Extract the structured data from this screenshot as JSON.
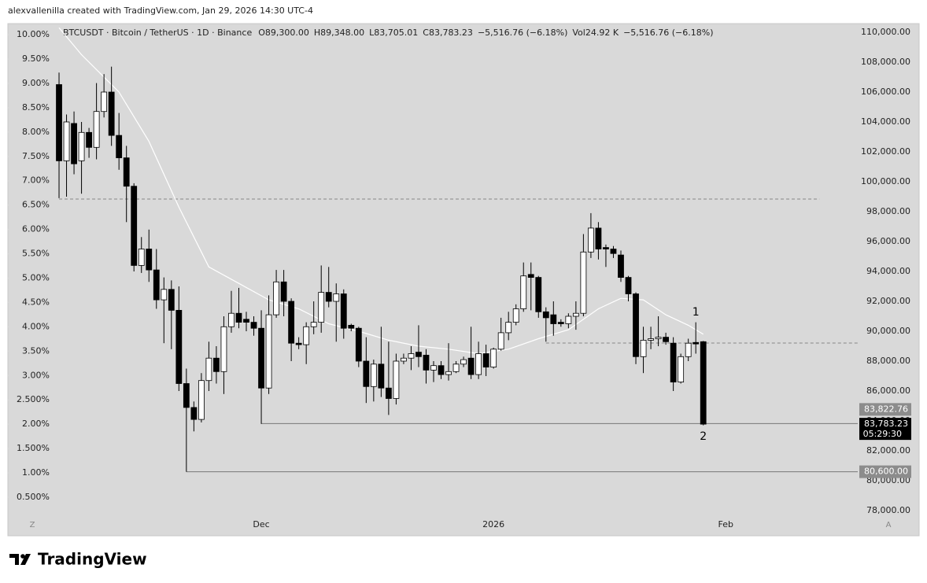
{
  "attribution": "alexvallenilla created with TradingView.com, Jan 29, 2026 14:30 UTC-4",
  "footer": "TradingView",
  "scale_buttons": [
    "Z",
    "A"
  ],
  "chart_data": {
    "type": "candlestick",
    "title": "BTCUSDT · Bitcoin / TetherUS · 1D · Binance",
    "header_values": [
      "O89,300.00",
      "H89,348.00",
      "L83,705.01",
      "C83,783.23",
      "−5,516.76 (−6.18%)",
      "Vol24.92 K",
      "−5,516.76 (−6.18%)"
    ],
    "up_color": "#ffffff",
    "down_color": "#000000",
    "open": [
      106500,
      101400,
      103900,
      101400,
      103300,
      102300,
      104700,
      106000,
      103100,
      101600,
      99700,
      94400,
      95500,
      94100,
      92100,
      92800,
      91400,
      86500,
      84900,
      84100,
      86700,
      88200,
      87300,
      90300,
      91200,
      90800,
      90600,
      90200,
      86200,
      91100,
      93300,
      92000,
      89200,
      89100,
      90300,
      90600,
      92600,
      92000,
      92500,
      90400,
      90200,
      88000,
      86300,
      87800,
      86200,
      85500,
      88000,
      88200,
      88600,
      88400,
      87400,
      87700,
      87100,
      87300,
      87800,
      88200,
      87100,
      88500,
      87600,
      88800,
      89900,
      90600,
      91500,
      93800,
      93600,
      91300,
      91100,
      90600,
      90500,
      91000,
      91200,
      95300,
      96900,
      95600,
      95500,
      95100,
      93600,
      92500,
      88300,
      89400,
      89500,
      89600,
      89200,
      86600,
      88300,
      89250,
      89300
    ],
    "high": [
      107300,
      104500,
      104700,
      104000,
      103600,
      106600,
      107200,
      107700,
      104600,
      102400,
      99900,
      96300,
      96800,
      95500,
      93600,
      93400,
      93000,
      87500,
      85300,
      87200,
      89300,
      89000,
      91000,
      92700,
      92900,
      91300,
      91000,
      91400,
      92400,
      94100,
      94100,
      92200,
      89600,
      90600,
      92000,
      94400,
      94300,
      93200,
      92800,
      90500,
      90300,
      89600,
      88100,
      90300,
      89300,
      88500,
      88500,
      89000,
      90400,
      88800,
      88000,
      88000,
      89200,
      88000,
      88300,
      90300,
      89300,
      89100,
      88900,
      90900,
      91300,
      91800,
      94600,
      94600,
      93700,
      91600,
      92000,
      90800,
      91200,
      92000,
      96500,
      97900,
      97300,
      95800,
      95700,
      95400,
      93700,
      92600,
      90300,
      90300,
      91000,
      89900,
      89600,
      88500,
      89500,
      90600,
      89348
    ],
    "low": [
      98900,
      99000,
      100500,
      99200,
      101600,
      101500,
      104300,
      102400,
      100800,
      97300,
      94000,
      93900,
      93300,
      91500,
      89200,
      88800,
      86000,
      80600,
      83300,
      83900,
      86000,
      86500,
      85800,
      89900,
      90200,
      90000,
      89700,
      83800,
      85800,
      90900,
      91000,
      88000,
      88800,
      87800,
      89800,
      89900,
      91600,
      89300,
      89500,
      90000,
      87600,
      85200,
      85300,
      85600,
      84400,
      85100,
      87800,
      87400,
      87600,
      86500,
      86600,
      86800,
      86700,
      87200,
      87600,
      86800,
      86800,
      87000,
      87500,
      88700,
      89400,
      90400,
      91300,
      91400,
      90900,
      89300,
      89700,
      90300,
      90200,
      90100,
      91000,
      94900,
      94800,
      94300,
      94900,
      93300,
      92000,
      87800,
      87200,
      88800,
      89000,
      89100,
      86000,
      86500,
      88000,
      88500,
      83705.01
    ],
    "close": [
      101400,
      104000,
      101200,
      103300,
      102300,
      104700,
      106000,
      103100,
      101600,
      99700,
      94400,
      95500,
      94100,
      92100,
      92800,
      91400,
      86500,
      84900,
      84100,
      86700,
      88200,
      87300,
      90300,
      91200,
      90600,
      90600,
      90200,
      86200,
      91100,
      93300,
      92000,
      89200,
      89100,
      90300,
      90600,
      92600,
      92000,
      92500,
      90200,
      90200,
      88000,
      86300,
      87800,
      86200,
      85500,
      88000,
      88200,
      88500,
      88300,
      87400,
      87700,
      87100,
      87300,
      87800,
      88100,
      87100,
      88500,
      87600,
      88800,
      89900,
      90600,
      91500,
      93700,
      93600,
      91300,
      90900,
      90500,
      90500,
      91000,
      91200,
      95300,
      96900,
      95500,
      95500,
      95200,
      93600,
      92500,
      88300,
      89400,
      89500,
      89600,
      89300,
      86600,
      88300,
      89200,
      89150,
      83783.23
    ],
    "moving_average": {
      "color": "#ffffff",
      "x": [
        0,
        3,
        8,
        12,
        16,
        20,
        24,
        28,
        32,
        36,
        40,
        44,
        48,
        52,
        56,
        60,
        64,
        68,
        72,
        75,
        78,
        81,
        84,
        86
      ],
      "values": [
        110300,
        108500,
        106000,
        102700,
        98300,
        94300,
        93200,
        92100,
        91500,
        90500,
        90000,
        89400,
        89000,
        88800,
        88500,
        88800,
        89500,
        90100,
        91500,
        92200,
        92100,
        91100,
        90400,
        89800
      ]
    },
    "hlines": [
      {
        "value": 98840,
        "start": 0,
        "end": 101.5,
        "style": "dashed",
        "color": "#888888"
      },
      {
        "value": 89210,
        "start": 65,
        "style": "dashed",
        "color": "#888888"
      },
      {
        "value": 83822.76,
        "start": 27,
        "style": "solid",
        "color": "#777777"
      },
      {
        "value": 80600,
        "start": 17,
        "style": "solid",
        "color": "#777777"
      }
    ],
    "price_labels": [
      {
        "value": 83822.76,
        "label": "83,822.76",
        "color": "#8c8c8c"
      },
      {
        "value": 83783.23,
        "label": "83,783.23",
        "sub": "05:29:30",
        "color": "#000000"
      },
      {
        "value": 80600,
        "label": "80,600.00",
        "color": "#8c8c8c"
      }
    ],
    "annotations": [
      {
        "text": "1",
        "x": 85,
        "y": 91260
      },
      {
        "text": "2",
        "x": 86,
        "y": 82950
      }
    ],
    "xlim": [
      -6.83,
      106.62
    ],
    "xticks": [
      {
        "value": 27,
        "label": "Dec"
      },
      {
        "value": 58,
        "label": "2026"
      },
      {
        "value": 89,
        "label": "Feb"
      }
    ],
    "ylim": [
      78000,
      110000
    ],
    "yticks": [
      {
        "value": 78000,
        "label": "78,000.00"
      },
      {
        "value": 80000,
        "label": "80,000.00"
      },
      {
        "value": 82000,
        "label": "82,000.00"
      },
      {
        "value": 84000,
        "label": "84,000.00"
      },
      {
        "value": 86000,
        "label": "86,000.00"
      },
      {
        "value": 88000,
        "label": "88,000.00"
      },
      {
        "value": 90000,
        "label": "90,000.00"
      },
      {
        "value": 92000,
        "label": "92,000.00"
      },
      {
        "value": 94000,
        "label": "94,000.00"
      },
      {
        "value": 96000,
        "label": "96,000.00"
      },
      {
        "value": 98000,
        "label": "98,000.00"
      },
      {
        "value": 100000,
        "label": "100,000.00"
      },
      {
        "value": 102000,
        "label": "102,000.00"
      },
      {
        "value": 104000,
        "label": "104,000.00"
      },
      {
        "value": 106000,
        "label": "106,000.00"
      },
      {
        "value": 108000,
        "label": "108,000.00"
      },
      {
        "value": 110000,
        "label": "110,000.00"
      }
    ],
    "y2lim": [
      0.225,
      10.05
    ],
    "y2ticks": [
      {
        "value": 0.5,
        "label": "0.500%"
      },
      {
        "value": 1,
        "label": "1.00%"
      },
      {
        "value": 1.5,
        "label": "1.500%"
      },
      {
        "value": 2,
        "label": "2.00%"
      },
      {
        "value": 2.5,
        "label": "2.500%"
      },
      {
        "value": 3,
        "label": "3.00%"
      },
      {
        "value": 3.5,
        "label": "3.50%"
      },
      {
        "value": 4,
        "label": "4.00%"
      },
      {
        "value": 4.5,
        "label": "4.50%"
      },
      {
        "value": 5,
        "label": "5.00%"
      },
      {
        "value": 5.5,
        "label": "5.50%"
      },
      {
        "value": 6,
        "label": "6.00%"
      },
      {
        "value": 6.5,
        "label": "6.50%"
      },
      {
        "value": 7,
        "label": "7.00%"
      },
      {
        "value": 7.5,
        "label": "7.50%"
      },
      {
        "value": 8,
        "label": "8.00%"
      },
      {
        "value": 8.5,
        "label": "8.50%"
      },
      {
        "value": 9,
        "label": "9.00%"
      },
      {
        "value": 9.5,
        "label": "9.50%"
      },
      {
        "value": 10,
        "label": "10.00%"
      }
    ]
  }
}
